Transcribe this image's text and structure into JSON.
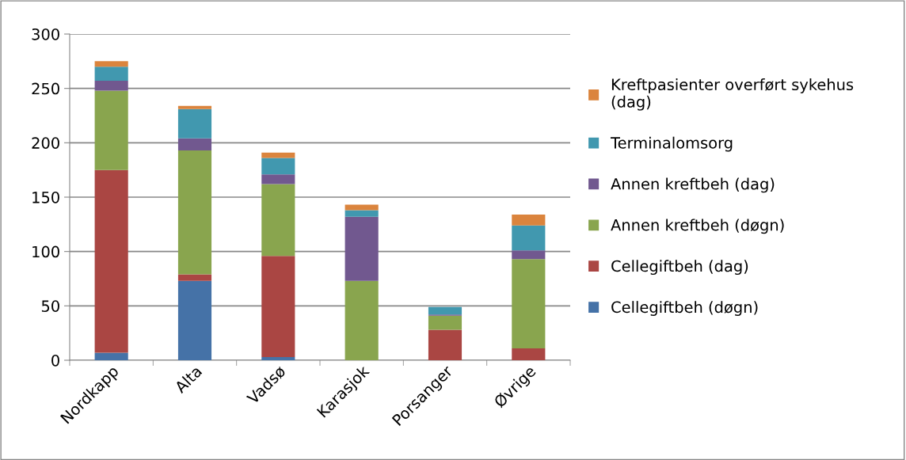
{
  "chart_data": {
    "type": "bar",
    "stacked": true,
    "categories": [
      "Nordkapp",
      "Alta",
      "Vadsø",
      "Karasjok",
      "Porsanger",
      "Øvrige"
    ],
    "series": [
      {
        "name": "Cellegiftbeh (døgn)",
        "color": "#4572a7",
        "values": [
          7,
          73,
          3,
          0,
          0,
          0
        ]
      },
      {
        "name": "Cellegiftbeh (dag)",
        "color": "#aa4643",
        "values": [
          168,
          6,
          93,
          0,
          28,
          11
        ]
      },
      {
        "name": "Annen kreftbeh (døgn)",
        "color": "#89a54e",
        "values": [
          73,
          114,
          66,
          73,
          13,
          82
        ]
      },
      {
        "name": "Annen kreftbeh (dag)",
        "color": "#71588f",
        "values": [
          9,
          11,
          9,
          59,
          1,
          8
        ]
      },
      {
        "name": "Terminalomsorg",
        "color": "#4198af",
        "values": [
          13,
          27,
          15,
          6,
          7,
          23
        ]
      },
      {
        "name": "Kreftpasienter overført sykehus (dag)",
        "color": "#db843d",
        "values": [
          5,
          3,
          5,
          5,
          0,
          10
        ]
      }
    ],
    "ylim": [
      0,
      300
    ],
    "yticks": [
      0,
      50,
      100,
      150,
      200,
      250,
      300
    ],
    "grid": "y",
    "legend": "right"
  }
}
